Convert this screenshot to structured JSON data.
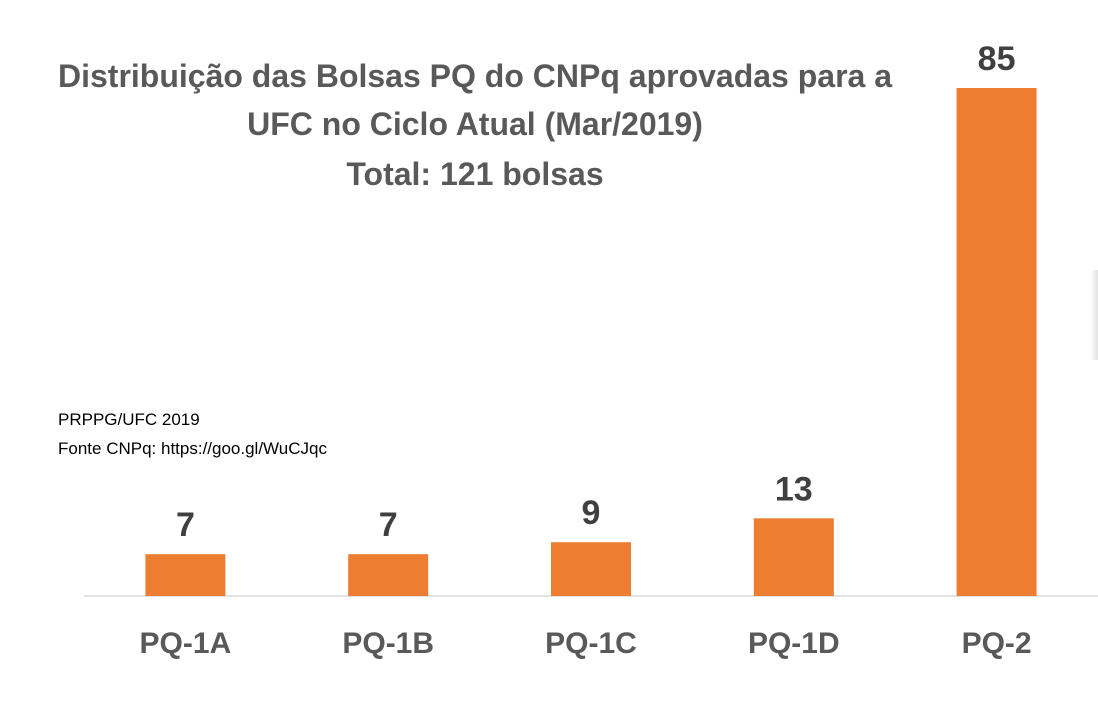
{
  "chart_data": {
    "type": "bar",
    "title_lines": [
      "Distribuição das Bolsas PQ do CNPq aprovadas para a",
      "UFC no Ciclo Atual (Mar/2019)",
      "Total: 121 bolsas"
    ],
    "categories": [
      "PQ-1A",
      "PQ-1B",
      "PQ-1C",
      "PQ-1D",
      "PQ-2"
    ],
    "values": [
      7,
      7,
      9,
      13,
      85
    ],
    "data_labels": [
      "7",
      "7",
      "9",
      "13",
      "85"
    ],
    "bar_color": "#ED7D31",
    "ylim": [
      0,
      85
    ],
    "grid": false,
    "legend": "none",
    "annotations": [
      "PRPPG/UFC 2019",
      "Fonte CNPq: https://goo.gl/WuCJqc"
    ]
  }
}
